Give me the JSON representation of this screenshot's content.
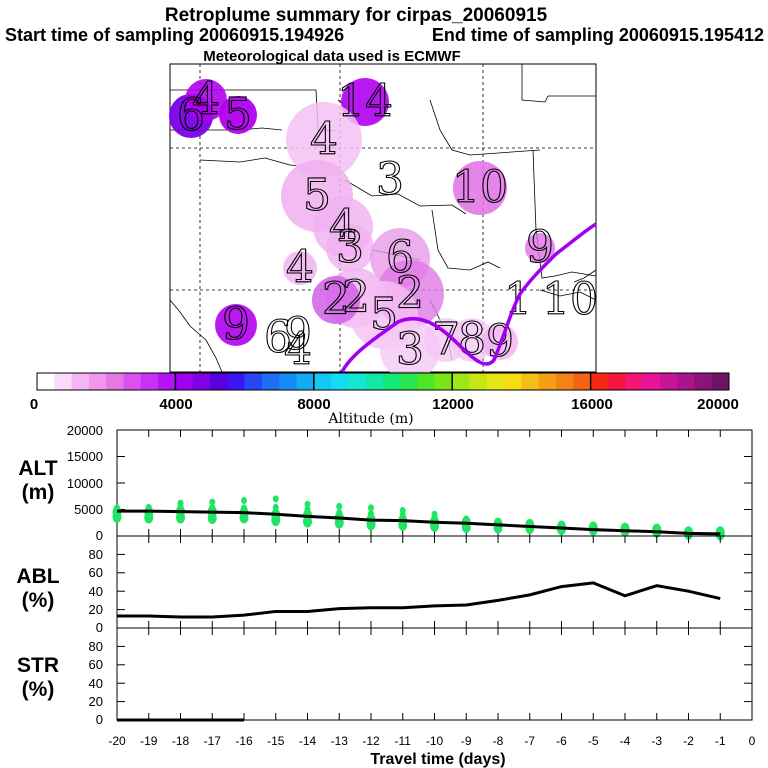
{
  "title": "Retroplume summary for cirpas_20060915",
  "subtitle_start": "Start time of sampling 20060915.194926",
  "subtitle_end": "End time of sampling 20060915.195412",
  "met_line": "Meteorological data used is ECMWF",
  "colorbar": {
    "label": "Altitude (m)",
    "min": 0,
    "max": 20000,
    "ticks": [
      "0",
      "4000",
      "8000",
      "12000",
      "16000",
      "20000"
    ],
    "colors": [
      "#ffffff",
      "#fadcfa",
      "#f5b4f5",
      "#f096f0",
      "#e678e6",
      "#dc50f0",
      "#c832f5",
      "#b414f5",
      "#a000f0",
      "#8200e6",
      "#5a00dc",
      "#3c14f5",
      "#2846f5",
      "#1e6ef5",
      "#148cf5",
      "#14aaf5",
      "#14c8f5",
      "#14dcf0",
      "#14e6d2",
      "#14e6aa",
      "#14e678",
      "#28e650",
      "#50e628",
      "#78e614",
      "#a0e614",
      "#c8e614",
      "#e6e614",
      "#f5dc14",
      "#f5be14",
      "#f5a014",
      "#f58214",
      "#f56414",
      "#f52814",
      "#f5143c",
      "#f51478",
      "#e61496",
      "#c81496",
      "#aa148c",
      "#8c1478",
      "#6e1464"
    ]
  },
  "map": {
    "labels": [
      {
        "text": "6",
        "color": "#7a00e6",
        "alpha": 0.95,
        "size": 22
      },
      {
        "text": "5",
        "color": "#b000f0",
        "alpha": 0.95,
        "size": 19
      },
      {
        "text": "4",
        "color": "#b000f0",
        "alpha": 0.9,
        "size": 21
      },
      {
        "text": "14",
        "color": "#b000f0",
        "alpha": 0.9,
        "size": 24
      },
      {
        "text": "4",
        "color": "#f5c0f5",
        "alpha": 0.85,
        "size": 38
      },
      {
        "text": "3",
        "color": "#ffffff",
        "alpha": 0,
        "size": 0
      },
      {
        "text": "10",
        "color": "#e070e6",
        "alpha": 0.85,
        "size": 27
      },
      {
        "text": "5",
        "color": "#f0b0f0",
        "alpha": 0.85,
        "size": 36
      },
      {
        "text": "4",
        "color": "#f0b0f0",
        "alpha": 0.8,
        "size": 30
      },
      {
        "text": "3",
        "color": "#f0b0f0",
        "alpha": 0.8,
        "size": 24
      },
      {
        "text": "4",
        "color": "#f0b0f0",
        "alpha": 0.8,
        "size": 17
      },
      {
        "text": "6",
        "color": "#e89ae8",
        "alpha": 0.8,
        "size": 30
      },
      {
        "text": "9",
        "color": "#e070e6",
        "alpha": 0.8,
        "size": 15
      },
      {
        "text": "2",
        "color": "#e078e6",
        "alpha": 0.8,
        "size": 34
      },
      {
        "text": "2",
        "color": "#f0b0f0",
        "alpha": 0.8,
        "size": 30
      },
      {
        "text": "5",
        "color": "#f5c0f5",
        "alpha": 0.8,
        "size": 34
      },
      {
        "text": "2",
        "color": "#d060e6",
        "alpha": 0.85,
        "size": 24
      },
      {
        "text": "9",
        "color": "#b000f0",
        "alpha": 0.9,
        "size": 21
      },
      {
        "text": "6",
        "color": "#ffffff",
        "alpha": 0,
        "size": 0
      },
      {
        "text": "4",
        "color": "#ffffff",
        "alpha": 0,
        "size": 0
      },
      {
        "text": "3",
        "color": "#f5c8f5",
        "alpha": 0.8,
        "size": 30
      },
      {
        "text": "7",
        "color": "#f5c8f5",
        "alpha": 0.8,
        "size": 22
      },
      {
        "text": "8",
        "color": "#f5c8f5",
        "alpha": 0.8,
        "size": 22
      },
      {
        "text": "9",
        "color": "#f0b0f0",
        "alpha": 0.8,
        "size": 18
      },
      {
        "text": "1",
        "color": "#ffffff",
        "alpha": 0,
        "size": 0
      },
      {
        "text": "10",
        "color": "#ffffff",
        "alpha": 0,
        "size": 0
      },
      {
        "text": "9",
        "color": "#ffffff",
        "alpha": 0,
        "size": 0
      }
    ]
  },
  "chart_data": [
    {
      "type": "scatter",
      "panel_label": [
        "ALT",
        "(m)"
      ],
      "x": [
        -20,
        -19,
        -18,
        -17,
        -16,
        -15,
        -14,
        -13,
        -12,
        -11,
        -10,
        -9,
        -8,
        -7,
        -6,
        -5,
        -4,
        -3,
        -2,
        -1
      ],
      "median_line": [
        4700,
        4700,
        4600,
        4500,
        4400,
        4100,
        3700,
        3400,
        3000,
        2900,
        2600,
        2400,
        2100,
        1800,
        1500,
        1200,
        1000,
        800,
        500,
        400
      ],
      "point_groups": [
        {
          "x": -20,
          "points": [
            3600,
            4500,
            5300
          ]
        },
        {
          "x": -19,
          "points": [
            3500,
            4500,
            5400
          ]
        },
        {
          "x": -18,
          "points": [
            3500,
            4600,
            5500,
            6200
          ]
        },
        {
          "x": -17,
          "points": [
            3400,
            4600,
            5400,
            6400
          ]
        },
        {
          "x": -16,
          "points": [
            3500,
            4400,
            5300,
            6700
          ]
        },
        {
          "x": -15,
          "points": [
            3000,
            4000,
            5400,
            7000
          ]
        },
        {
          "x": -14,
          "points": [
            2700,
            3900,
            5000,
            6000
          ]
        },
        {
          "x": -13,
          "points": [
            2500,
            3500,
            4400,
            5600
          ]
        },
        {
          "x": -12,
          "points": [
            2200,
            3100,
            4200,
            5300
          ]
        },
        {
          "x": -11,
          "points": [
            2100,
            2900,
            4000,
            4800
          ]
        },
        {
          "x": -10,
          "points": [
            1900,
            2700,
            3600,
            4100
          ]
        },
        {
          "x": -9,
          "points": [
            1700,
            2600,
            3200
          ]
        },
        {
          "x": -8,
          "points": [
            1600,
            2300,
            2800
          ]
        },
        {
          "x": -7,
          "points": [
            1500,
            2100,
            2500
          ]
        },
        {
          "x": -6,
          "points": [
            1300,
            1800
          ]
        },
        {
          "x": -5,
          "points": [
            1200,
            1600
          ]
        },
        {
          "x": -4,
          "points": [
            1000,
            1400
          ]
        },
        {
          "x": -3,
          "points": [
            800,
            1200
          ]
        },
        {
          "x": -2,
          "points": [
            400,
            700
          ]
        },
        {
          "x": -1,
          "points": [
            300,
            700
          ]
        }
      ],
      "yticks": [
        "0",
        "5000",
        "10000",
        "15000",
        "20000"
      ],
      "ylim": [
        0,
        20000
      ],
      "point_color": "#1ee664"
    },
    {
      "type": "line",
      "panel_label": [
        "ABL",
        "(%)"
      ],
      "x": [
        -20,
        -19,
        -18,
        -17,
        -16,
        -15,
        -14,
        -13,
        -12,
        -11,
        -10,
        -9,
        -8,
        -7,
        -6,
        -5,
        -4,
        -3,
        -2,
        -1
      ],
      "values": [
        13,
        13,
        12,
        12,
        14,
        18,
        18,
        21,
        22,
        22,
        24,
        25,
        30,
        36,
        45,
        49,
        35,
        46,
        40,
        32
      ],
      "yticks": [
        "0",
        "20",
        "40",
        "60",
        "80"
      ],
      "ylim": [
        0,
        100
      ]
    },
    {
      "type": "line",
      "panel_label": [
        "STR",
        "(%)"
      ],
      "x": [
        -20,
        -19,
        -18,
        -17,
        -16
      ],
      "values": [
        0,
        0,
        0,
        0,
        0
      ],
      "yticks": [
        "0",
        "20",
        "40",
        "60",
        "80"
      ],
      "ylim": [
        0,
        100
      ]
    }
  ],
  "xaxis": {
    "label": "Travel time (days)",
    "ticks": [
      "-20",
      "-19",
      "-18",
      "-17",
      "-16",
      "-15",
      "-14",
      "-13",
      "-12",
      "-11",
      "-10",
      "-9",
      "-8",
      "-7",
      "-6",
      "-5",
      "-4",
      "-3",
      "-2",
      "-1",
      "0"
    ],
    "xlim": [
      -20,
      0
    ]
  }
}
